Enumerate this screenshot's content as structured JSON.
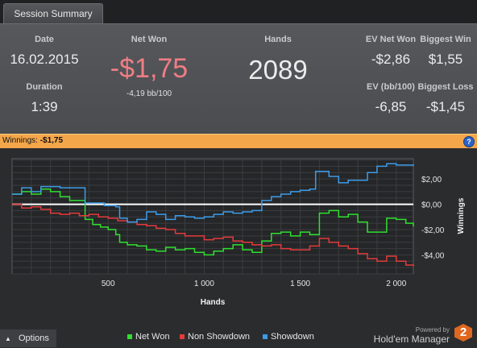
{
  "tab": {
    "label": "Session Summary"
  },
  "summary": {
    "date_label": "Date",
    "date_value": "16.02.2015",
    "duration_label": "Duration",
    "duration_value": "1:39",
    "netwon_label": "Net Won",
    "netwon_value": "-$1,75",
    "netwon_sub": "-4,19 bb/100",
    "hands_label": "Hands",
    "hands_value": "2089",
    "ev_net_label": "EV Net Won",
    "ev_net_value": "-$2,86",
    "biggest_win_label": "Biggest Win",
    "biggest_win_value": "$1,55",
    "ev_bb_label": "EV (bb/100)",
    "ev_bb_value": "-6,85",
    "biggest_loss_label": "Biggest Loss",
    "biggest_loss_value": "-$1,45"
  },
  "winnings_bar": {
    "label": "Winnings:",
    "value": "-$1,75",
    "help": "?"
  },
  "colors": {
    "net_won": "#2fe02f",
    "non_showdown": "#e43b3b",
    "showdown": "#3c9ce8",
    "negative": "#f07d84",
    "bar": "#f4a64a"
  },
  "chart_data": {
    "type": "line",
    "xlabel": "Hands",
    "ylabel": "Winnings",
    "xlim": [
      0,
      2089
    ],
    "ylim": [
      -5.5,
      3.6
    ],
    "x_ticks": [
      500,
      1000,
      1500,
      2000
    ],
    "x_tick_labels": [
      "500",
      "1 000",
      "1 500",
      "2 000"
    ],
    "y_ticks": [
      2,
      0,
      -2,
      -4
    ],
    "y_tick_labels": [
      "$2,00",
      "$0,00",
      "-$2,00",
      "-$4,00"
    ],
    "grid": true,
    "legend": "bottom",
    "series": [
      {
        "name": "Net Won",
        "color": "#2fe02f",
        "x": [
          0,
          50,
          100,
          150,
          200,
          250,
          300,
          350,
          380,
          420,
          460,
          500,
          540,
          560,
          600,
          650,
          700,
          750,
          800,
          850,
          900,
          950,
          1000,
          1050,
          1100,
          1150,
          1200,
          1250,
          1300,
          1350,
          1400,
          1450,
          1500,
          1550,
          1600,
          1650,
          1700,
          1750,
          1800,
          1850,
          1900,
          1950,
          2000,
          2050,
          2089
        ],
        "y": [
          0.8,
          1.0,
          0.8,
          1.2,
          1.0,
          0.6,
          0.3,
          0.3,
          -1.2,
          -1.6,
          -1.8,
          -2.0,
          -2.4,
          -3.0,
          -3.2,
          -3.3,
          -3.6,
          -3.7,
          -3.4,
          -3.6,
          -3.5,
          -3.8,
          -4.0,
          -3.7,
          -3.5,
          -3.2,
          -3.6,
          -3.8,
          -2.9,
          -2.3,
          -2.2,
          -2.5,
          -2.2,
          -2.4,
          -0.7,
          -0.5,
          -1.0,
          -0.8,
          -1.4,
          -2.2,
          -2.2,
          -1.1,
          -1.2,
          -1.5,
          -1.75
        ]
      },
      {
        "name": "Non Showdown",
        "color": "#e43b3b",
        "x": [
          0,
          50,
          100,
          150,
          200,
          250,
          300,
          350,
          400,
          450,
          500,
          550,
          600,
          650,
          700,
          750,
          800,
          850,
          900,
          950,
          1000,
          1050,
          1100,
          1150,
          1200,
          1250,
          1300,
          1350,
          1400,
          1450,
          1500,
          1550,
          1600,
          1650,
          1700,
          1750,
          1800,
          1850,
          1900,
          1950,
          2000,
          2050,
          2089
        ],
        "y": [
          0.0,
          -0.3,
          -0.2,
          -0.4,
          -0.7,
          -0.8,
          -0.7,
          -0.9,
          -0.8,
          -1.0,
          -1.1,
          -1.3,
          -1.4,
          -1.6,
          -1.7,
          -1.9,
          -2.0,
          -2.3,
          -2.5,
          -2.5,
          -2.8,
          -2.7,
          -2.6,
          -2.9,
          -3.0,
          -3.2,
          -3.3,
          -3.2,
          -3.5,
          -3.6,
          -3.6,
          -3.3,
          -2.7,
          -3.0,
          -3.3,
          -3.5,
          -3.9,
          -4.3,
          -4.5,
          -4.1,
          -4.5,
          -4.8,
          -4.9
        ]
      },
      {
        "name": "Showdown",
        "color": "#3c9ce8",
        "x": [
          0,
          50,
          100,
          150,
          200,
          250,
          300,
          340,
          380,
          420,
          480,
          540,
          560,
          600,
          650,
          700,
          750,
          800,
          850,
          900,
          950,
          1000,
          1050,
          1100,
          1150,
          1200,
          1250,
          1300,
          1350,
          1400,
          1450,
          1500,
          1550,
          1580,
          1600,
          1650,
          1700,
          1750,
          1800,
          1850,
          1900,
          1950,
          2000,
          2050,
          2089
        ],
        "y": [
          0.8,
          1.3,
          1.0,
          1.4,
          1.4,
          1.3,
          1.3,
          1.3,
          0.1,
          0.1,
          -0.1,
          -0.2,
          -1.1,
          -1.4,
          -1.2,
          -0.6,
          -0.8,
          -1.2,
          -0.9,
          -1.0,
          -1.1,
          -1.0,
          -0.8,
          -0.6,
          -0.7,
          -0.6,
          -0.5,
          0.3,
          0.6,
          0.8,
          1.0,
          1.1,
          1.2,
          2.6,
          2.6,
          2.2,
          1.7,
          1.9,
          1.9,
          2.5,
          3.0,
          3.2,
          3.1,
          3.1,
          3.0
        ]
      }
    ]
  },
  "footer": {
    "options_label": "Options",
    "legend_net": "Net Won",
    "legend_ns": "Non Showdown",
    "legend_sd": "Showdown",
    "powered_by": "Powered by",
    "brand": "Hold'em Manager",
    "logo_num": "2"
  }
}
